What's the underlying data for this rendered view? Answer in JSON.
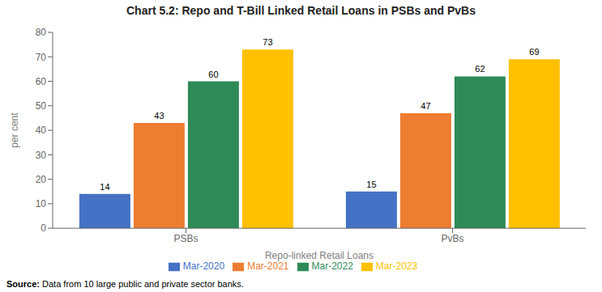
{
  "chart_data": {
    "type": "bar",
    "title": "Chart 5.2: Repo and T-Bill Linked Retail Loans in PSBs and PvBs",
    "categories": [
      "PSBs",
      "PvBs"
    ],
    "series": [
      {
        "name": "Mar-2020",
        "color": "#4472C4",
        "values": [
          14,
          15
        ]
      },
      {
        "name": "Mar-2021",
        "color": "#ED7D31",
        "values": [
          43,
          47
        ]
      },
      {
        "name": "Mar-2022",
        "color": "#2E8B57",
        "values": [
          60,
          62
        ]
      },
      {
        "name": "Mar-2023",
        "color": "#FFC000",
        "values": [
          73,
          69
        ]
      }
    ],
    "xlabel": "Repo-linked Retail Loans",
    "ylabel": "per cent",
    "ylim": [
      0,
      80
    ],
    "yticks": [
      0,
      10,
      20,
      30,
      40,
      50,
      60,
      70,
      80
    ],
    "grid": false,
    "legend": "bottom",
    "data_labels": true,
    "annotations": [
      "Source:",
      "Data from 10 large public and private sector banks."
    ]
  }
}
